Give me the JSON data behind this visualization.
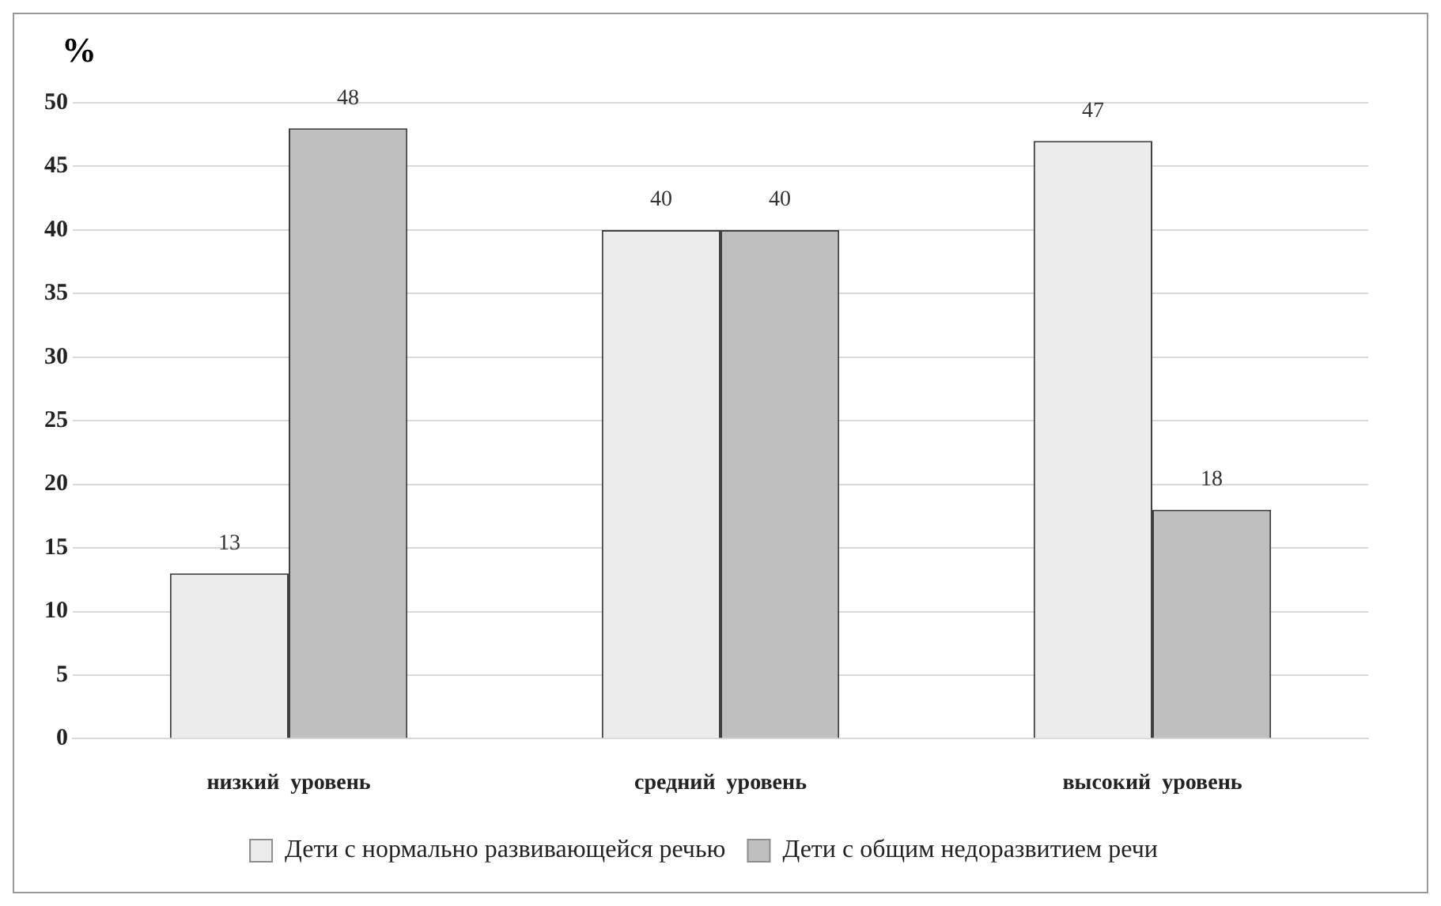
{
  "chart_data": {
    "type": "bar",
    "ylabel": "%",
    "categories": [
      "низкий  уровень",
      "средний  уровень",
      "высокий  уровень"
    ],
    "series": [
      {
        "name": "Дети с нормально развивающейся речью",
        "color": "#ececec",
        "values": [
          13,
          40,
          47
        ]
      },
      {
        "name": "Дети с общим недоразвитием речи",
        "color": "#bfbfbf",
        "values": [
          48,
          40,
          18
        ]
      }
    ],
    "ylim": [
      0,
      50
    ],
    "yticks": [
      0,
      5,
      10,
      15,
      20,
      25,
      30,
      35,
      40,
      45,
      50
    ],
    "grid": "y",
    "legend": "bottom",
    "data_labels": true
  }
}
